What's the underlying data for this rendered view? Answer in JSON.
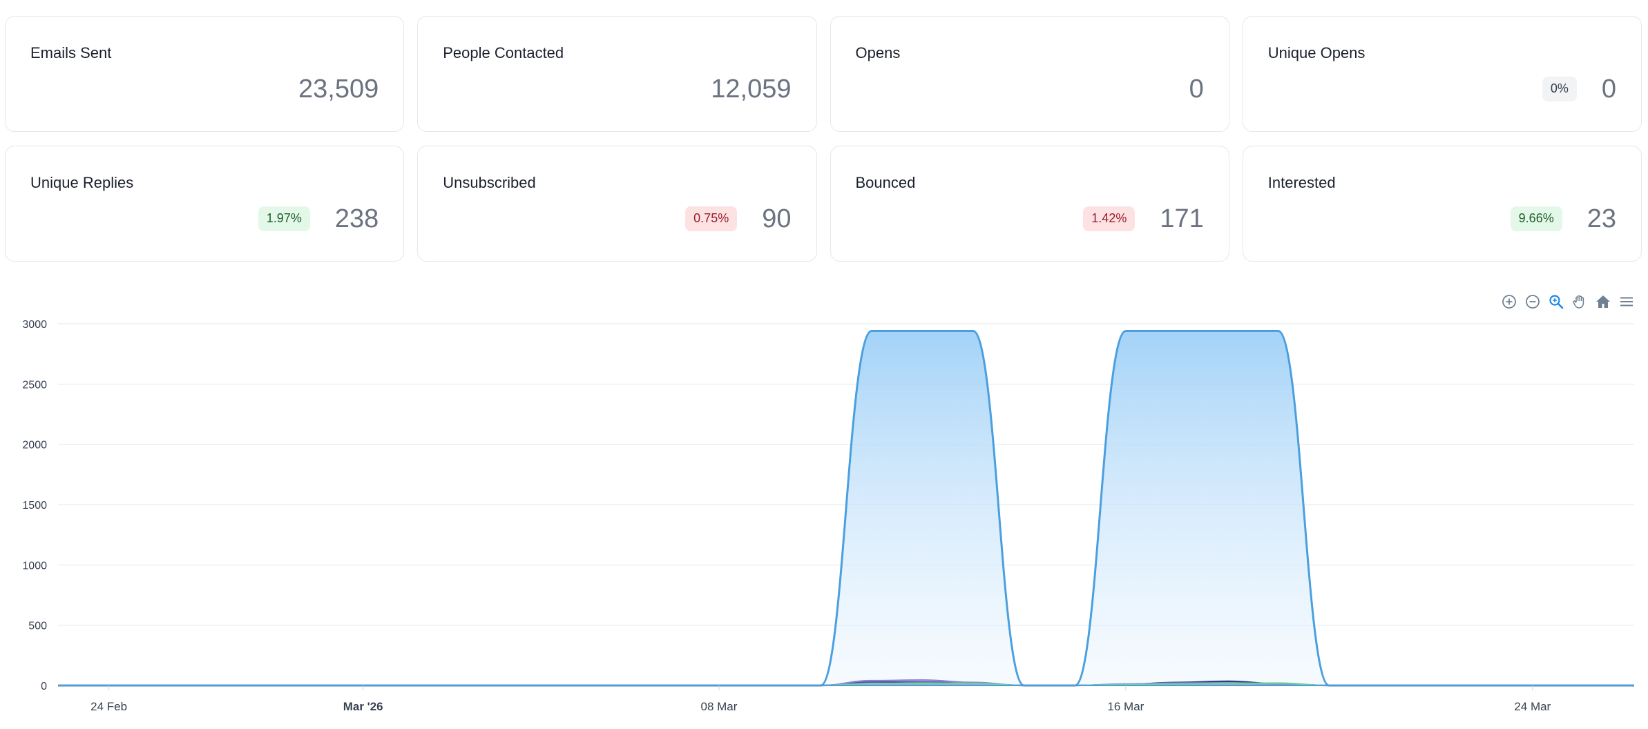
{
  "cards": [
    {
      "label": "Emails Sent",
      "value": "23,509",
      "badge": null
    },
    {
      "label": "People Contacted",
      "value": "12,059",
      "badge": null
    },
    {
      "label": "Opens",
      "value": "0",
      "badge": null
    },
    {
      "label": "Unique Opens",
      "value": "0",
      "badge": {
        "text": "0%",
        "tone": "gray"
      }
    },
    {
      "label": "Unique Replies",
      "value": "238",
      "badge": {
        "text": "1.97%",
        "tone": "green"
      }
    },
    {
      "label": "Unsubscribed",
      "value": "90",
      "badge": {
        "text": "0.75%",
        "tone": "red"
      }
    },
    {
      "label": "Bounced",
      "value": "171",
      "badge": {
        "text": "1.42%",
        "tone": "red"
      }
    },
    {
      "label": "Interested",
      "value": "23",
      "badge": {
        "text": "9.66%",
        "tone": "green"
      }
    }
  ],
  "toolbar": [
    "zoom-in-icon",
    "zoom-out-icon",
    "selection-zoom-icon",
    "pan-hand-icon",
    "home-reset-icon",
    "menu-icon"
  ],
  "colors": {
    "sent": "#4a9fdf",
    "sent_fill": "#9fd0f7",
    "replies": "#2d3a8c",
    "secondary": "#8c7ed8",
    "tertiary": "#6fcf97",
    "grid": "#e5e7eb"
  },
  "chart_data": {
    "type": "area",
    "x_ticks": [
      {
        "label": "24 Feb",
        "date": "2026-02-24",
        "bold": false
      },
      {
        "label": "Mar '26",
        "date": "2026-03-01",
        "bold": true
      },
      {
        "label": "08 Mar",
        "date": "2026-03-08",
        "bold": false
      },
      {
        "label": "16 Mar",
        "date": "2026-03-16",
        "bold": false
      },
      {
        "label": "24 Mar",
        "date": "2026-03-24",
        "bold": false
      }
    ],
    "x_range": [
      "2026-02-23",
      "2026-03-26"
    ],
    "y_ticks": [
      "0",
      "500",
      "1000",
      "1500",
      "2000",
      "2500",
      "3000"
    ],
    "ylim": [
      0,
      3000
    ],
    "grid": true,
    "series": [
      {
        "key": "sent",
        "values": [
          [
            "2026-02-23",
            0
          ],
          [
            "2026-03-10",
            0
          ],
          [
            "2026-03-11",
            2940
          ],
          [
            "2026-03-12",
            2940
          ],
          [
            "2026-03-13",
            2940
          ],
          [
            "2026-03-14",
            0
          ],
          [
            "2026-03-15",
            0
          ],
          [
            "2026-03-16",
            2940
          ],
          [
            "2026-03-17",
            2940
          ],
          [
            "2026-03-18",
            2940
          ],
          [
            "2026-03-19",
            2940
          ],
          [
            "2026-03-20",
            0
          ],
          [
            "2026-03-26",
            0
          ]
        ]
      },
      {
        "key": "replies",
        "values": [
          [
            "2026-02-23",
            0
          ],
          [
            "2026-03-10",
            0
          ],
          [
            "2026-03-11",
            30
          ],
          [
            "2026-03-12",
            28
          ],
          [
            "2026-03-13",
            20
          ],
          [
            "2026-03-14",
            0
          ],
          [
            "2026-03-15",
            0
          ],
          [
            "2026-03-16",
            10
          ],
          [
            "2026-03-17",
            25
          ],
          [
            "2026-03-18",
            35
          ],
          [
            "2026-03-19",
            15
          ],
          [
            "2026-03-20",
            0
          ],
          [
            "2026-03-26",
            0
          ]
        ]
      },
      {
        "key": "secondary",
        "values": [
          [
            "2026-02-23",
            0
          ],
          [
            "2026-03-10",
            0
          ],
          [
            "2026-03-11",
            40
          ],
          [
            "2026-03-12",
            45
          ],
          [
            "2026-03-13",
            25
          ],
          [
            "2026-03-14",
            0
          ],
          [
            "2026-03-15",
            0
          ],
          [
            "2026-03-16",
            12
          ],
          [
            "2026-03-17",
            20
          ],
          [
            "2026-03-18",
            22
          ],
          [
            "2026-03-19",
            12
          ],
          [
            "2026-03-20",
            0
          ],
          [
            "2026-03-26",
            0
          ]
        ]
      },
      {
        "key": "tertiary",
        "values": [
          [
            "2026-02-23",
            0
          ],
          [
            "2026-03-10",
            0
          ],
          [
            "2026-03-11",
            15
          ],
          [
            "2026-03-12",
            20
          ],
          [
            "2026-03-13",
            18
          ],
          [
            "2026-03-14",
            0
          ],
          [
            "2026-03-15",
            0
          ],
          [
            "2026-03-16",
            8
          ],
          [
            "2026-03-17",
            12
          ],
          [
            "2026-03-18",
            18
          ],
          [
            "2026-03-19",
            20
          ],
          [
            "2026-03-20",
            0
          ],
          [
            "2026-03-26",
            0
          ]
        ]
      }
    ]
  }
}
